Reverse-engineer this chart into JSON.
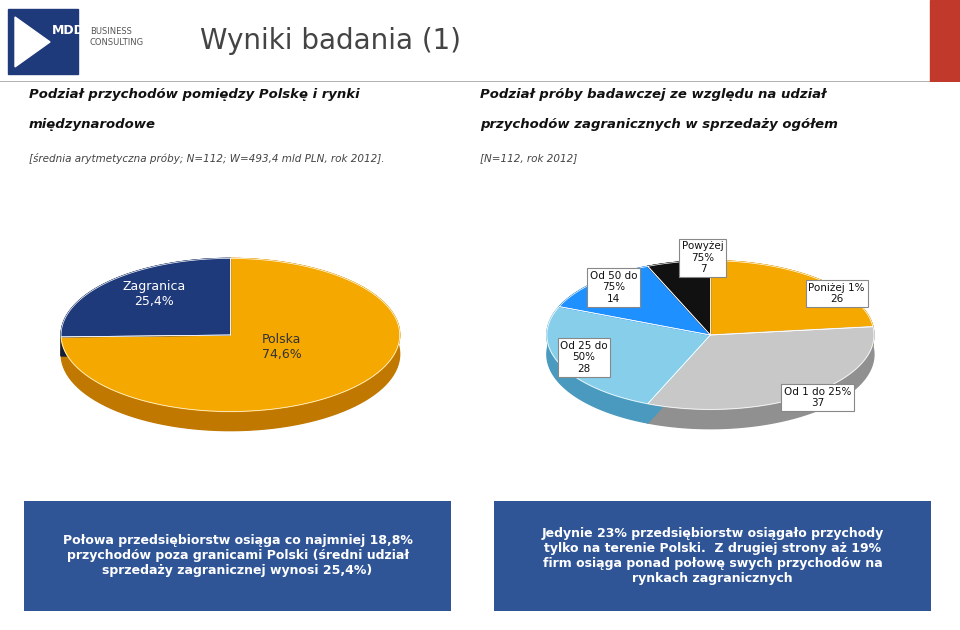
{
  "bg_color": "#ffffff",
  "header_bg": "#f2f2f2",
  "header_title": "Wyniki badania (1)",
  "header_title_color": "#444444",
  "header_title_size": 22,
  "left_title1": "Podział przychodów pomiędzy Polskę i rynki",
  "left_title2": "międzynarodowe",
  "left_subtitle": "[średnia arytmetyczna próby; N=112; W=493,4 mld PLN, rok 2012].",
  "right_title1": "Podział próby badawczej ze względu na udział",
  "right_title2": "przychodów zagranicznych w sprzedaży ogółem",
  "right_subtitle": "[N=112, rok 2012]",
  "pie1_values": [
    74.6,
    25.4
  ],
  "pie1_colors": [
    "#F5A800",
    "#1F3A7A"
  ],
  "pie1_dark_colors": [
    "#c07800",
    "#0f1d3e"
  ],
  "pie2_values": [
    26,
    37,
    28,
    14,
    7
  ],
  "pie2_colors": [
    "#F5A800",
    "#c8c8c8",
    "#87CEEB",
    "#1E90FF",
    "#111111"
  ],
  "pie2_dark_colors": [
    "#c07800",
    "#909090",
    "#4a9abf",
    "#0060b0",
    "#000000"
  ],
  "bottom_left_bg": "#2F5597",
  "bottom_left_text": "Połowa przedsiębiorstw osiąga co najmniej 18,8%\nprzychodów poza granicami Polski (średni udział\nsprzedaży zagranicznej wynosi 25,4%)",
  "bottom_left_text_color": "#ffffff",
  "bottom_right_bg": "#2F5597",
  "bottom_right_text": "Jedynie 23% przedsiębiorstw osiągało przychody\ntylko na terenie Polski.  Z drugiej strony aż 19%\nfirm osiąga ponad połowę swych przychodów na\nrynkach zagranicznych",
  "bottom_right_text_color": "#ffffff"
}
